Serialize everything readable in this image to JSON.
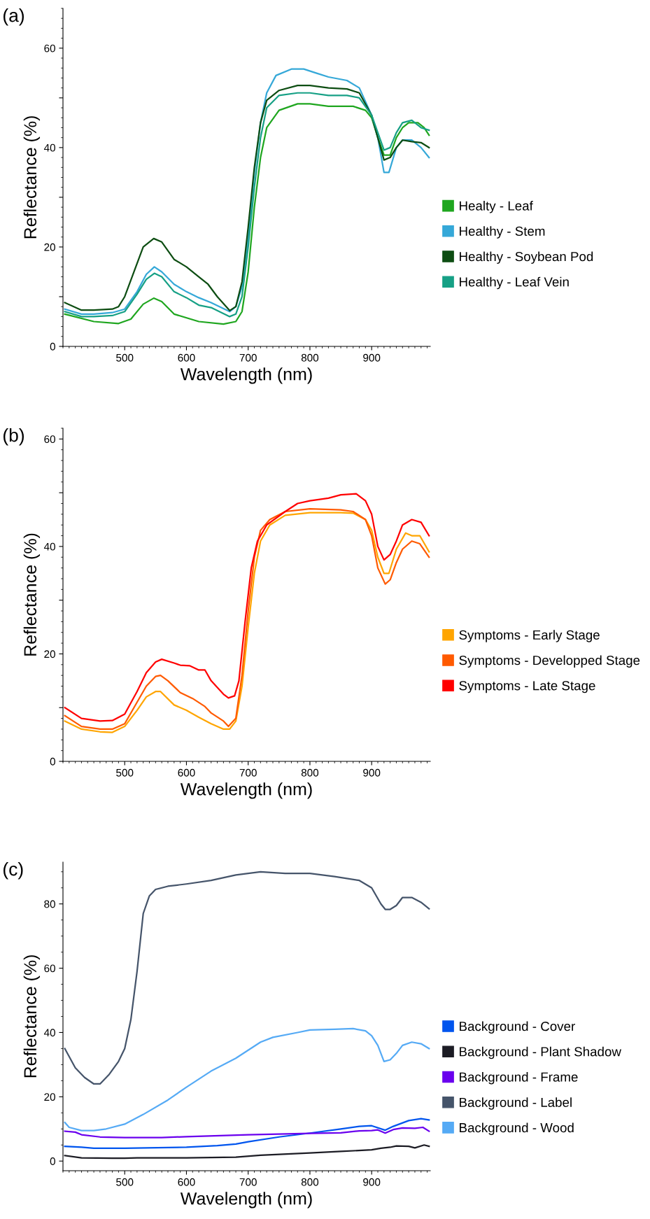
{
  "chart_data": [
    {
      "type": "line",
      "title": "(a)",
      "xlabel": "Wavelength (nm)",
      "ylabel": "Reflectance (%)",
      "xlim": [
        400,
        995
      ],
      "xticks": [
        500,
        600,
        700,
        800,
        900
      ],
      "ylim": [
        0,
        68
      ],
      "yticks": [
        0,
        {
          "value": 10,
          "label": null
        },
        20,
        {
          "value": 30,
          "label": null
        },
        40,
        {
          "value": 50,
          "label": null
        },
        60
      ],
      "legend": "right",
      "grid": false,
      "series": [
        {
          "name": "Healty - Leaf",
          "color": "#1fa61f",
          "x": [
            403,
            450,
            490,
            510,
            530,
            547,
            560,
            580,
            620,
            660,
            680,
            690,
            700,
            710,
            720,
            730,
            750,
            780,
            800,
            830,
            870,
            890,
            900,
            910,
            920,
            930,
            940,
            950,
            960,
            975,
            985,
            993
          ],
          "values": [
            6.5,
            5,
            4.6,
            5.5,
            8.5,
            9.7,
            9,
            6.5,
            5,
            4.5,
            5,
            7,
            15,
            28,
            38,
            44,
            47.5,
            48.8,
            48.8,
            48.3,
            48.3,
            47.5,
            46,
            42,
            38.5,
            38.5,
            42,
            44,
            45,
            45,
            44,
            42.5
          ]
        },
        {
          "name": "Healthy - Stem",
          "color": "#35a8d8",
          "x": [
            403,
            430,
            450,
            480,
            500,
            520,
            535,
            548,
            560,
            580,
            600,
            620,
            640,
            670,
            680,
            690,
            700,
            710,
            720,
            730,
            745,
            770,
            790,
            810,
            830,
            860,
            880,
            900,
            910,
            920,
            928,
            940,
            950,
            965,
            980,
            993
          ],
          "values": [
            7.5,
            6.5,
            6.5,
            6.8,
            7.5,
            11,
            14.5,
            16,
            15,
            12.5,
            11,
            9.8,
            8.8,
            7,
            8,
            12,
            22,
            35,
            45,
            51,
            54.5,
            55.8,
            55.8,
            55,
            54.2,
            53.5,
            52,
            46.5,
            42,
            35,
            35,
            40,
            41.5,
            41.5,
            40,
            38
          ]
        },
        {
          "name": "Healthy - Soybean Pod",
          "color": "#0d4d12",
          "x": [
            403,
            430,
            450,
            480,
            490,
            500,
            515,
            530,
            547,
            560,
            580,
            600,
            620,
            635,
            650,
            670,
            680,
            690,
            700,
            710,
            720,
            730,
            750,
            780,
            800,
            830,
            860,
            880,
            900,
            910,
            920,
            930,
            940,
            950,
            965,
            980,
            993
          ],
          "values": [
            8.8,
            7.3,
            7.3,
            7.5,
            8,
            10,
            15,
            20,
            21.7,
            21,
            17.5,
            16,
            14,
            12.5,
            10,
            7.2,
            8,
            13,
            24,
            36,
            45,
            49.5,
            51.5,
            52.5,
            52.5,
            52,
            51.8,
            51,
            46.5,
            42,
            37.5,
            38,
            40,
            41.5,
            41.2,
            41,
            40
          ]
        },
        {
          "name": "Healthy - Leaf Vein",
          "color": "#16a085",
          "x": [
            403,
            430,
            450,
            480,
            500,
            520,
            535,
            548,
            560,
            580,
            600,
            620,
            640,
            670,
            680,
            690,
            700,
            710,
            720,
            730,
            750,
            780,
            800,
            830,
            860,
            880,
            900,
            910,
            920,
            930,
            940,
            950,
            965,
            980,
            993
          ],
          "values": [
            7,
            6,
            6,
            6.2,
            7,
            10.5,
            13.5,
            14.7,
            14,
            11,
            9.8,
            8.3,
            7.8,
            6,
            6.5,
            10,
            20,
            32,
            42,
            48,
            50.5,
            51,
            51,
            50.5,
            50.5,
            50,
            46.5,
            43,
            39.5,
            40,
            43,
            45,
            45.5,
            44,
            43.5
          ]
        }
      ]
    },
    {
      "type": "line",
      "title": "(b)",
      "xlabel": "Wavelength (nm)",
      "ylabel": "Reflectance (%)",
      "xlim": [
        400,
        995
      ],
      "xticks": [
        500,
        600,
        700,
        800,
        900
      ],
      "ylim": [
        0,
        62
      ],
      "yticks": [
        0,
        {
          "value": 10,
          "label": null
        },
        20,
        {
          "value": 30,
          "label": null
        },
        40,
        {
          "value": 50,
          "label": null
        },
        60
      ],
      "legend": "right",
      "grid": false,
      "series": [
        {
          "name": "Symptoms - Early Stage",
          "color": "#ffa500",
          "x": [
            403,
            430,
            460,
            480,
            500,
            520,
            535,
            550,
            558,
            580,
            600,
            620,
            640,
            660,
            670,
            680,
            690,
            700,
            710,
            720,
            735,
            760,
            800,
            850,
            870,
            890,
            900,
            910,
            920,
            928,
            940,
            955,
            965,
            978,
            993
          ],
          "values": [
            7.5,
            6,
            5.5,
            5.4,
            6.5,
            9.5,
            12,
            13,
            13,
            10.5,
            9.5,
            8.2,
            7,
            6,
            6,
            7.5,
            14,
            25,
            35,
            41,
            44,
            45.8,
            46.3,
            46.3,
            46.2,
            45,
            43,
            38,
            35,
            35,
            39.5,
            42.5,
            42,
            42,
            39
          ]
        },
        {
          "name": "Symptoms - Developped Stage",
          "color": "#ff5a00",
          "x": [
            403,
            430,
            460,
            480,
            500,
            520,
            535,
            550,
            558,
            570,
            590,
            610,
            630,
            640,
            660,
            668,
            680,
            690,
            700,
            710,
            720,
            735,
            760,
            800,
            850,
            870,
            890,
            900,
            910,
            922,
            930,
            940,
            950,
            965,
            978,
            993
          ],
          "values": [
            8.5,
            6.5,
            6,
            6,
            7,
            11,
            14,
            15.8,
            16,
            15,
            12.8,
            11.7,
            10.2,
            9,
            7.5,
            6.5,
            8,
            16,
            28,
            38,
            43,
            45,
            46.5,
            47,
            46.8,
            46.5,
            45,
            42,
            36,
            33,
            33.8,
            37,
            39.5,
            41,
            40.5,
            38
          ]
        },
        {
          "name": "Symptoms - Late Stage",
          "color": "#ff0000",
          "x": [
            403,
            430,
            460,
            480,
            500,
            520,
            535,
            550,
            560,
            580,
            590,
            605,
            620,
            630,
            640,
            660,
            668,
            678,
            685,
            695,
            705,
            715,
            730,
            760,
            780,
            800,
            830,
            850,
            875,
            890,
            900,
            910,
            920,
            930,
            940,
            950,
            965,
            980,
            993
          ],
          "values": [
            10,
            8,
            7.5,
            7.6,
            8.8,
            13,
            16.5,
            18.5,
            19,
            18.3,
            17.9,
            17.8,
            17,
            17,
            15,
            12.5,
            11.8,
            12.2,
            15,
            26,
            36,
            41,
            44,
            46.5,
            48,
            48.5,
            49,
            49.6,
            49.8,
            48.5,
            46,
            40,
            37.5,
            38.5,
            41,
            44,
            45,
            44.5,
            42
          ]
        }
      ]
    },
    {
      "type": "line",
      "title": "(c)",
      "xlabel": "Wavelength (nm)",
      "ylabel": "Reflectance (%)",
      "xlim": [
        400,
        995
      ],
      "xticks": [
        500,
        600,
        700,
        800,
        900
      ],
      "ylim": [
        -3,
        93
      ],
      "yticks": [
        0,
        20,
        40,
        60,
        80
      ],
      "legend": "right",
      "grid": false,
      "series": [
        {
          "name": "Background - Cover",
          "color": "#0055ee",
          "x": [
            403,
            430,
            450,
            500,
            600,
            650,
            680,
            700,
            750,
            800,
            850,
            880,
            900,
            922,
            935,
            960,
            980,
            993
          ],
          "values": [
            4.6,
            4.3,
            4,
            4,
            4.3,
            4.8,
            5.3,
            6,
            7.5,
            8.7,
            10,
            10.8,
            11,
            9.6,
            10.8,
            12.6,
            13.2,
            12.8
          ]
        },
        {
          "name": "Background - Plant Shadow",
          "color": "#1c1c24",
          "x": [
            403,
            430,
            480,
            500,
            520,
            600,
            680,
            720,
            800,
            850,
            900,
            915,
            930,
            940,
            960,
            970,
            985,
            993
          ],
          "values": [
            1.7,
            1,
            0.9,
            0.9,
            1,
            1,
            1.2,
            1.8,
            2.5,
            3,
            3.5,
            4,
            4.3,
            4.7,
            4.6,
            4.1,
            5,
            4.6
          ]
        },
        {
          "name": "Background - Frame",
          "color": "#6a00ee",
          "x": [
            403,
            420,
            430,
            460,
            500,
            560,
            600,
            700,
            800,
            850,
            880,
            900,
            910,
            922,
            935,
            950,
            970,
            983,
            993
          ],
          "values": [
            9.3,
            9,
            8.2,
            7.5,
            7.3,
            7.3,
            7.6,
            8.2,
            8.6,
            8.8,
            9.4,
            9.5,
            9.7,
            8.7,
            9.8,
            10.3,
            10.2,
            10.5,
            9.3
          ]
        },
        {
          "name": "Background - Label",
          "color": "#45546a",
          "x": [
            403,
            420,
            435,
            450,
            460,
            475,
            490,
            500,
            510,
            520,
            530,
            540,
            550,
            570,
            600,
            640,
            680,
            720,
            760,
            800,
            840,
            880,
            900,
            915,
            922,
            930,
            940,
            950,
            965,
            980,
            993
          ],
          "values": [
            35,
            29,
            26,
            24,
            24,
            27,
            31,
            35,
            44,
            59,
            77,
            82.5,
            84.5,
            85.5,
            86.2,
            87.3,
            89,
            90,
            89.5,
            89.5,
            88.5,
            87.3,
            85,
            80,
            78.3,
            78.3,
            79.5,
            82,
            82,
            80.5,
            78.5
          ]
        },
        {
          "name": "Background - Wood",
          "color": "#55aaf5",
          "x": [
            403,
            410,
            430,
            450,
            470,
            500,
            530,
            570,
            600,
            640,
            680,
            720,
            740,
            780,
            800,
            840,
            870,
            890,
            900,
            910,
            920,
            930,
            940,
            950,
            965,
            980,
            993
          ],
          "values": [
            12,
            10.5,
            9.5,
            9.5,
            10,
            11.5,
            14.5,
            19,
            23,
            28,
            32,
            37,
            38.5,
            40,
            40.8,
            41,
            41.2,
            40.5,
            39,
            36,
            31,
            31.5,
            33.5,
            36,
            37,
            36.5,
            35
          ]
        }
      ]
    }
  ]
}
